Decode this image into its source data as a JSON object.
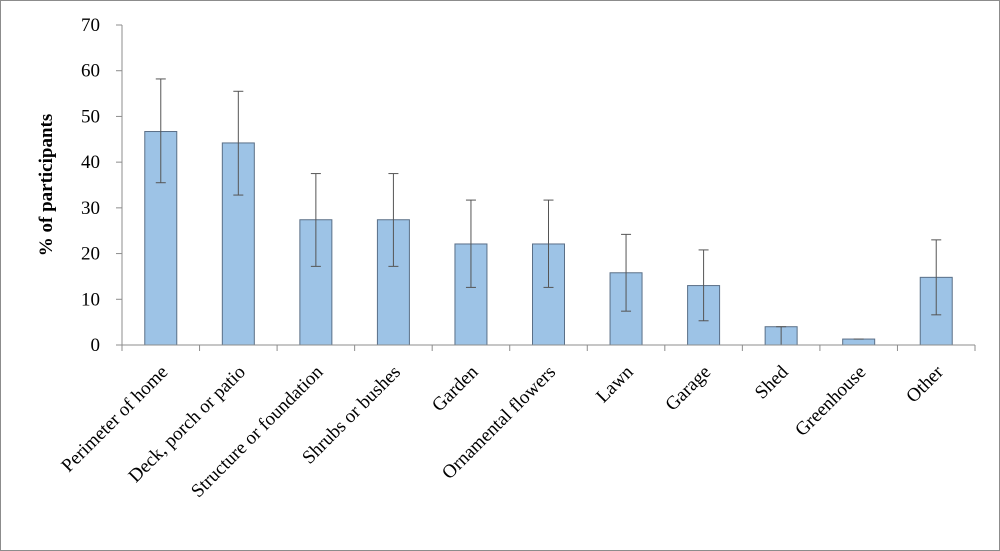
{
  "chart_data": {
    "type": "bar",
    "title": "",
    "xlabel": "",
    "ylabel": "% of participants",
    "ylim": [
      0,
      70
    ],
    "yticks": [
      0,
      10,
      20,
      30,
      40,
      50,
      60,
      70
    ],
    "grid": false,
    "categories": [
      "Perimeter of home",
      "Deck, porch or patio",
      "Structure or foundation",
      "Shrubs or bushes",
      "Garden",
      "Ornamental flowers",
      "Lawn",
      "Garage",
      "Shed",
      "Greenhouse",
      "Other"
    ],
    "values": [
      46.7,
      44.2,
      27.4,
      27.4,
      22.1,
      22.1,
      15.8,
      13.0,
      4.0,
      1.3,
      14.8
    ],
    "error_low": [
      35.5,
      32.8,
      17.2,
      17.2,
      12.6,
      12.6,
      7.4,
      5.3,
      0.0,
      1.3,
      6.6
    ],
    "error_high": [
      58.2,
      55.5,
      37.5,
      37.5,
      31.7,
      31.7,
      24.2,
      20.8,
      4.0,
      1.3,
      23.0
    ],
    "colors": {
      "bar_fill": "#9dc3e6",
      "bar_stroke": "#5a6f87",
      "error_bar": "#555555",
      "axis": "#8c8c8c"
    }
  }
}
